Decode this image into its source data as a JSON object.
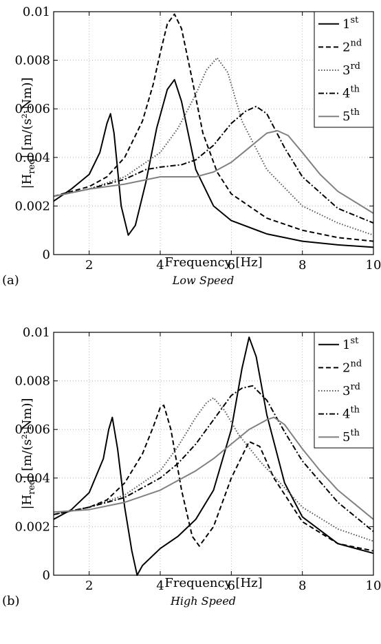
{
  "chart_data": [
    {
      "type": "line",
      "panel_label": "(a)",
      "caption": "Low Speed",
      "xlabel": "Frequency [Hz]",
      "ylabel": "|H_req|  [m/(s²·Nm)]",
      "xlim": [
        1,
        10
      ],
      "ylim": [
        0,
        0.01
      ],
      "xticks": [
        "2",
        "4",
        "6",
        "8",
        "10"
      ],
      "yticks": [
        "0",
        "0.002",
        "0.004",
        "0.006",
        "0.008",
        "0.01"
      ],
      "grid": true,
      "legend_position": "top-right",
      "series": [
        {
          "name": "1",
          "sup": "st",
          "color": "#000000",
          "dash": "",
          "x": [
            1.0,
            1.5,
            2.0,
            2.3,
            2.5,
            2.6,
            2.7,
            2.9,
            3.1,
            3.3,
            3.6,
            3.9,
            4.2,
            4.4,
            4.6,
            5.0,
            5.5,
            6.0,
            7.0,
            8.0,
            9.0,
            10.0
          ],
          "y": [
            0.0022,
            0.0027,
            0.0033,
            0.0042,
            0.0054,
            0.0058,
            0.005,
            0.002,
            0.0008,
            0.0012,
            0.003,
            0.0052,
            0.0068,
            0.0072,
            0.0063,
            0.0035,
            0.002,
            0.0014,
            0.00085,
            0.00055,
            0.0004,
            0.0003
          ]
        },
        {
          "name": "2",
          "sup": "nd",
          "color": "#000000",
          "dash": "7,4",
          "x": [
            1.0,
            1.5,
            2.0,
            2.5,
            3.0,
            3.5,
            3.8,
            4.0,
            4.2,
            4.4,
            4.6,
            4.9,
            5.2,
            5.6,
            6.0,
            7.0,
            8.0,
            9.0,
            10.0
          ],
          "y": [
            0.0024,
            0.0026,
            0.0028,
            0.0032,
            0.004,
            0.0055,
            0.007,
            0.0083,
            0.0095,
            0.0099,
            0.0093,
            0.0072,
            0.005,
            0.0034,
            0.0025,
            0.0015,
            0.001,
            0.0007,
            0.00055
          ]
        },
        {
          "name": "3",
          "sup": "rd",
          "color": "#555555",
          "dash": "1.5,2.5",
          "x": [
            1.0,
            2.0,
            3.0,
            4.0,
            4.5,
            5.0,
            5.3,
            5.6,
            5.9,
            6.3,
            7.0,
            8.0,
            9.0,
            10.0
          ],
          "y": [
            0.0024,
            0.0027,
            0.0032,
            0.0042,
            0.0052,
            0.0066,
            0.0076,
            0.0081,
            0.0075,
            0.0055,
            0.0035,
            0.002,
            0.0013,
            0.0008
          ]
        },
        {
          "name": "4",
          "sup": "th",
          "color": "#000000",
          "dash": "8,3,2,3",
          "x": [
            1.0,
            2.0,
            3.0,
            3.6,
            4.0,
            4.6,
            5.0,
            5.5,
            6.0,
            6.4,
            6.7,
            7.0,
            7.5,
            8.0,
            9.0,
            10.0
          ],
          "y": [
            0.0024,
            0.0027,
            0.0031,
            0.0035,
            0.0036,
            0.0037,
            0.0039,
            0.0045,
            0.0054,
            0.0059,
            0.0061,
            0.0058,
            0.0044,
            0.0032,
            0.0019,
            0.0013
          ]
        },
        {
          "name": "5",
          "sup": "th",
          "color": "#808080",
          "dash": "",
          "x": [
            1.0,
            2.0,
            3.0,
            4.0,
            5.0,
            5.5,
            6.0,
            6.5,
            7.0,
            7.3,
            7.6,
            8.0,
            8.5,
            9.0,
            10.0
          ],
          "y": [
            0.0024,
            0.0027,
            0.0029,
            0.0032,
            0.0032,
            0.0034,
            0.0038,
            0.0044,
            0.005,
            0.0051,
            0.0049,
            0.0042,
            0.0033,
            0.0026,
            0.0017
          ]
        }
      ]
    },
    {
      "type": "line",
      "panel_label": "(b)",
      "caption": "High Speed",
      "xlabel": "Frequency [Hz]",
      "ylabel": "|H_req|  [m/(s²·Nm)]",
      "xlim": [
        1,
        10
      ],
      "ylim": [
        0,
        0.01
      ],
      "xticks": [
        "2",
        "4",
        "6",
        "8",
        "10"
      ],
      "yticks": [
        "0",
        "0.002",
        "0.004",
        "0.006",
        "0.008",
        "0.01"
      ],
      "grid": true,
      "legend_position": "top-right",
      "series": [
        {
          "name": "1",
          "sup": "st",
          "color": "#000000",
          "dash": "",
          "x": [
            1.0,
            1.5,
            2.0,
            2.4,
            2.55,
            2.65,
            2.8,
            3.0,
            3.2,
            3.35,
            3.5,
            4.0,
            4.5,
            5.0,
            5.5,
            6.0,
            6.3,
            6.5,
            6.7,
            7.0,
            7.5,
            8.0,
            9.0,
            10.0
          ],
          "y": [
            0.0023,
            0.0027,
            0.0034,
            0.0048,
            0.006,
            0.0065,
            0.0052,
            0.0028,
            0.001,
            0.0,
            0.0004,
            0.0011,
            0.0016,
            0.0023,
            0.0035,
            0.006,
            0.0085,
            0.0098,
            0.009,
            0.0066,
            0.0038,
            0.0024,
            0.0013,
            0.0009
          ]
        },
        {
          "name": "2",
          "sup": "nd",
          "color": "#000000",
          "dash": "7,4",
          "x": [
            1.0,
            2.0,
            2.5,
            3.0,
            3.5,
            3.8,
            4.0,
            4.1,
            4.3,
            4.6,
            4.9,
            5.1,
            5.5,
            6.0,
            6.5,
            6.8,
            7.2,
            8.0,
            9.0,
            10.0
          ],
          "y": [
            0.0025,
            0.0028,
            0.0031,
            0.0038,
            0.005,
            0.0061,
            0.0069,
            0.007,
            0.006,
            0.0035,
            0.0016,
            0.0012,
            0.002,
            0.004,
            0.0055,
            0.0053,
            0.004,
            0.0022,
            0.0013,
            0.001
          ]
        },
        {
          "name": "3",
          "sup": "rd",
          "color": "#555555",
          "dash": "1.5,2.5",
          "x": [
            1.0,
            2.0,
            3.0,
            4.0,
            4.5,
            5.0,
            5.3,
            5.5,
            5.8,
            6.2,
            6.8,
            7.5,
            8.0,
            9.0,
            10.0
          ],
          "y": [
            0.0025,
            0.0028,
            0.0033,
            0.0043,
            0.0053,
            0.0065,
            0.0071,
            0.0073,
            0.0068,
            0.0058,
            0.0047,
            0.0036,
            0.0028,
            0.0019,
            0.0014
          ]
        },
        {
          "name": "4",
          "sup": "th",
          "color": "#000000",
          "dash": "8,3,2,3",
          "x": [
            1.0,
            2.0,
            3.0,
            4.0,
            4.5,
            5.0,
            5.5,
            6.0,
            6.3,
            6.6,
            7.0,
            7.5,
            8.0,
            9.0,
            10.0
          ],
          "y": [
            0.0025,
            0.0028,
            0.0032,
            0.004,
            0.0046,
            0.0054,
            0.0064,
            0.0074,
            0.0077,
            0.0078,
            0.0072,
            0.0059,
            0.0047,
            0.003,
            0.0018
          ]
        },
        {
          "name": "5",
          "sup": "th",
          "color": "#808080",
          "dash": "",
          "x": [
            1.0,
            2.0,
            3.0,
            4.0,
            5.0,
            5.5,
            6.0,
            6.5,
            7.0,
            7.2,
            7.5,
            8.0,
            8.5,
            9.0,
            10.0
          ],
          "y": [
            0.0026,
            0.0027,
            0.003,
            0.0035,
            0.0043,
            0.0048,
            0.0054,
            0.006,
            0.0064,
            0.0065,
            0.0062,
            0.0052,
            0.0043,
            0.0035,
            0.0023
          ]
        }
      ]
    }
  ]
}
